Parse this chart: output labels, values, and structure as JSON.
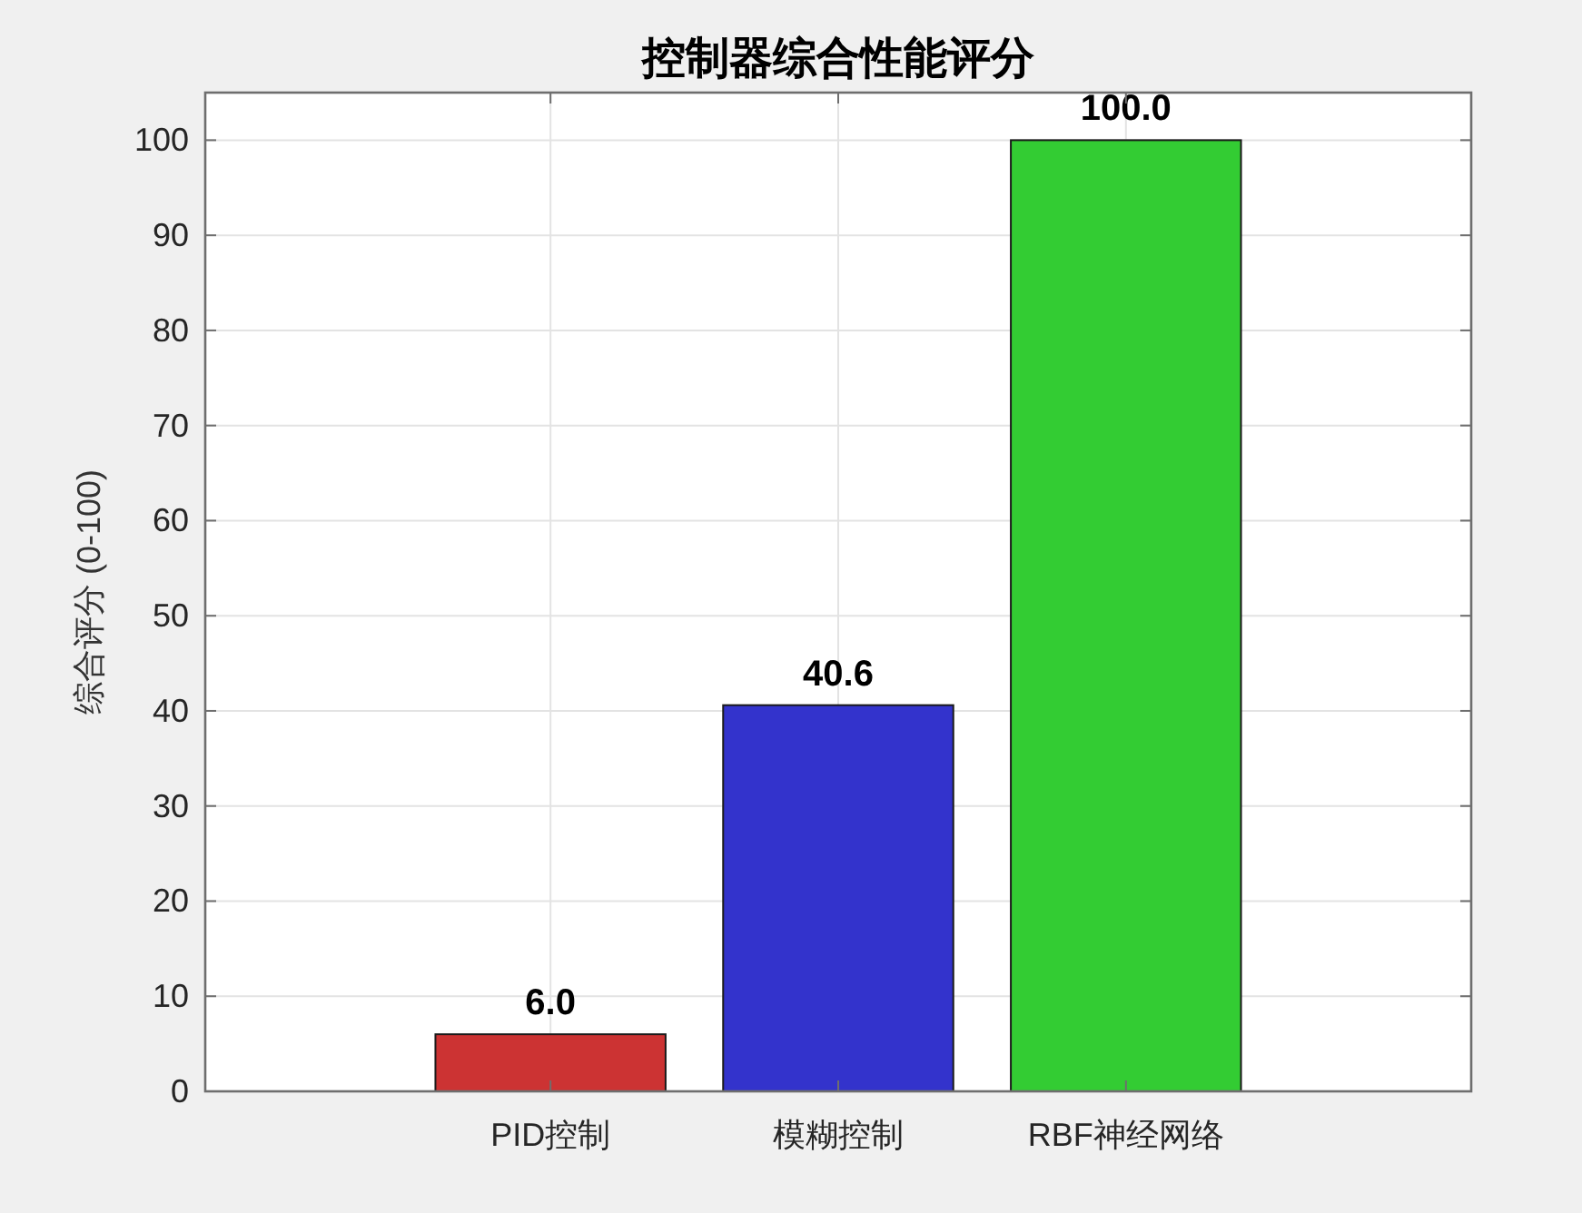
{
  "chart_data": {
    "type": "bar",
    "title": "控制器综合性能评分",
    "ylabel": "综合评分 (0-100)",
    "categories": [
      "PID控制",
      "模糊控制",
      "RBF神经网络"
    ],
    "values": [
      6.0,
      40.6,
      100.0
    ],
    "colors": [
      "#cc3333",
      "#3333cc",
      "#33cc33"
    ],
    "value_labels": [
      "6.0",
      "40.6",
      "100.0"
    ],
    "ylim": [
      0,
      105
    ],
    "yticks": [
      0,
      10,
      20,
      30,
      40,
      50,
      60,
      70,
      80,
      90,
      100
    ],
    "grid": true
  }
}
